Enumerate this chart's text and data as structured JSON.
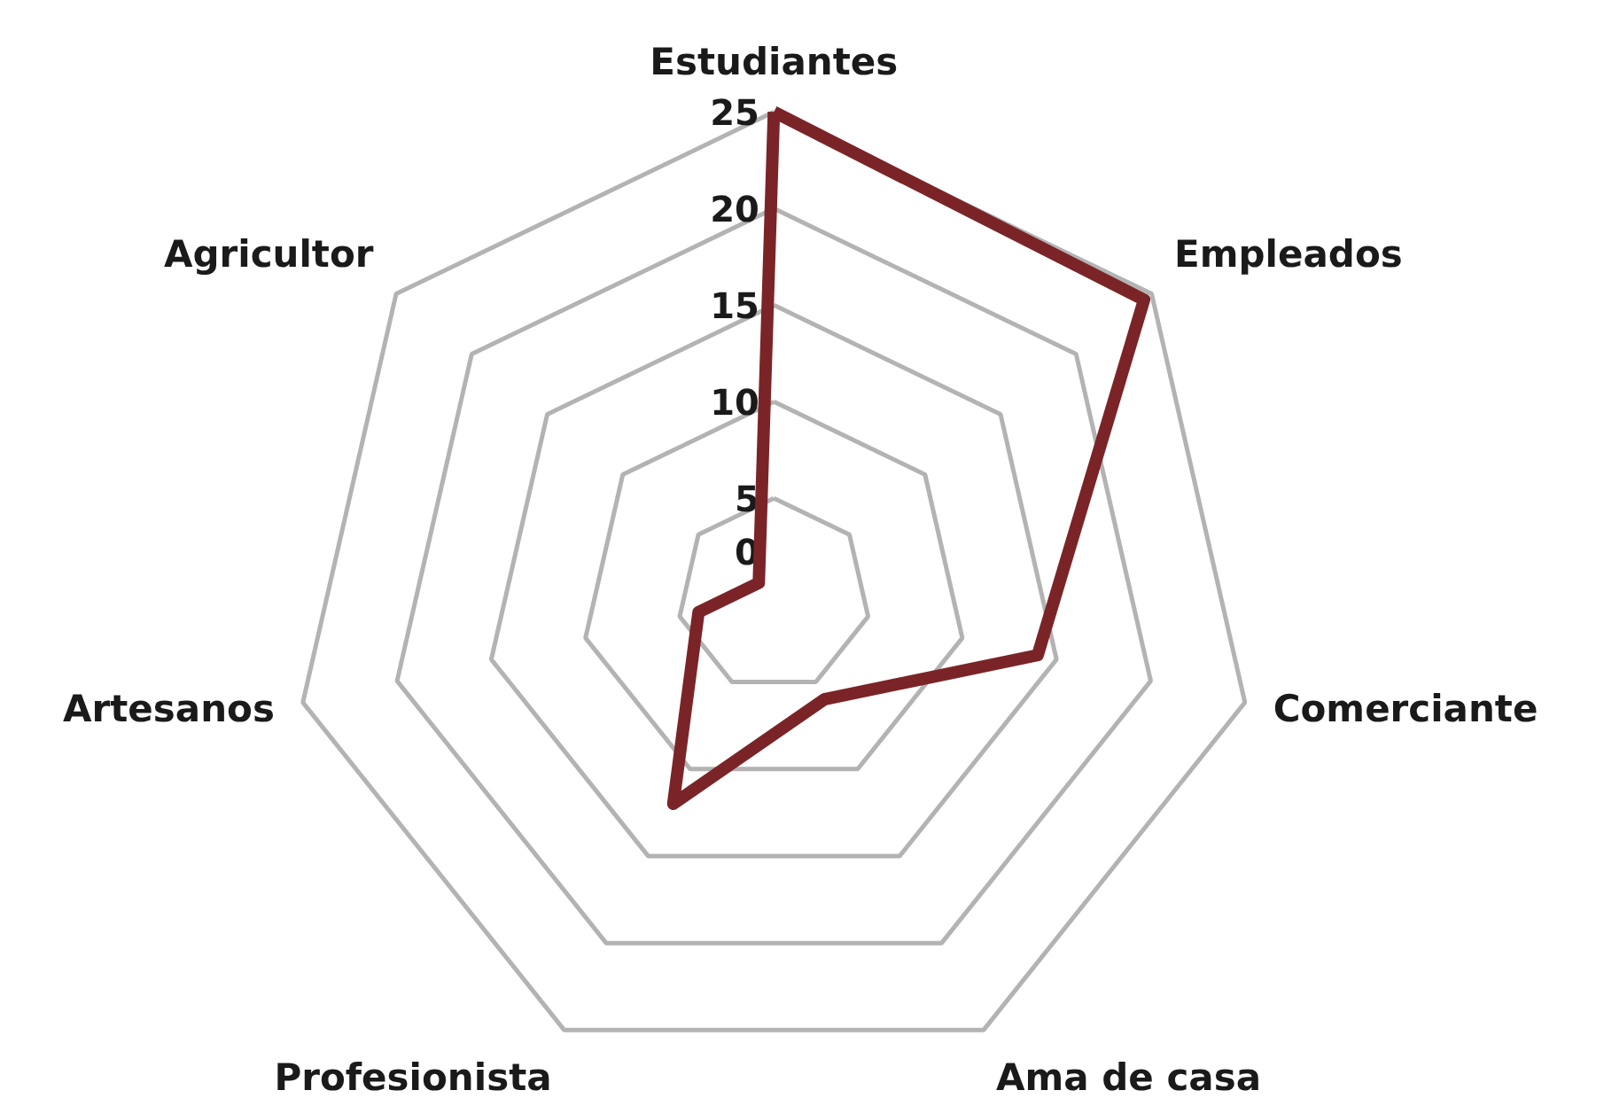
{
  "chart_data": {
    "type": "radar",
    "categories": [
      "Estudiantes",
      "Empleados",
      "Comerciante",
      "Ama de casa",
      "Profesionista",
      "Artesanos",
      "Agricultor"
    ],
    "series": [
      {
        "color": "#7b2427",
        "values": [
          25,
          24.5,
          14,
          6,
          12,
          4,
          1
        ]
      }
    ],
    "ylim": [
      0,
      25
    ],
    "yticks": [
      0,
      5,
      10,
      15,
      20,
      25
    ],
    "grid": true,
    "marker": "none",
    "line_style": "solid"
  }
}
